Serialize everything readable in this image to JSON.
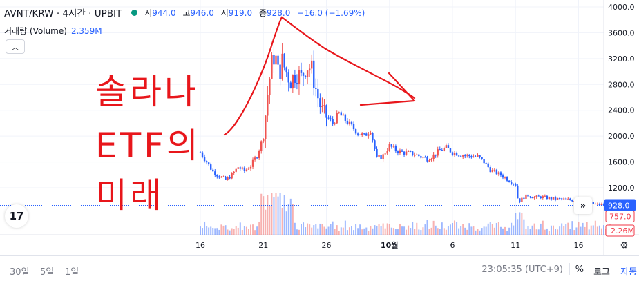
{
  "header": {
    "symbol": "AVNT/KRW · 4시간 · UPBIT",
    "open_label": "시",
    "open_value": "944.0",
    "high_label": "고",
    "high_value": "946.0",
    "low_label": "저",
    "low_value": "919.0",
    "close_label": "종",
    "close_value": "928.0",
    "change": "−16.0 (−1.69%)",
    "status_color": "#089981"
  },
  "volume_label": "거래량 (Volume)",
  "volume_value": "2.359M",
  "collapse_icon": "chevron-up-icon",
  "logo_text": "17",
  "price_scale_labels": {
    "current_price": "928.0",
    "current_color": "#2962ff",
    "marker_price": "757.0",
    "volume_tag": "2.26M",
    "marker_color": "#f23645"
  },
  "bottom_bar": {
    "ranges": [
      "30일",
      "5일",
      "1일"
    ],
    "clock": "23:05:35 (UTC+9)",
    "percent": "%",
    "log": "로그",
    "auto": "자동"
  },
  "annotation": {
    "line1": "솔라나",
    "line2": "ETF의",
    "line3": "미래",
    "ink_color": "#e8161b"
  },
  "colors": {
    "up": "#ef5350",
    "down": "#2962ff",
    "grid": "#f0f3fa",
    "text": "#131722"
  },
  "chart_data": {
    "type": "candlestick",
    "title": "AVNT/KRW · 4시간 · UPBIT",
    "y_ticks": [
      1200,
      1600,
      2000,
      2400,
      2800,
      3200,
      3600,
      4000
    ],
    "y_tick_labels": [
      "1200.0",
      "1600.0",
      "2000.0",
      "2400.0",
      "2800.0",
      "3200.0",
      "3600.0",
      "4000.0"
    ],
    "ylim": [
      716,
      4060
    ],
    "x_tick_labels": [
      "16",
      "21",
      "26",
      "10월",
      "6",
      "11",
      "16"
    ],
    "x_tick_days": [
      0,
      5,
      10,
      15,
      20,
      25,
      30
    ],
    "xlim_days": [
      -0.5,
      33.6
    ],
    "current_price": 928.0,
    "close_series": [
      [
        0,
        1750
      ],
      [
        0.5,
        1600
      ],
      [
        1,
        1450
      ],
      [
        1.5,
        1380
      ],
      [
        2,
        1320
      ],
      [
        2.5,
        1400
      ],
      [
        3,
        1520
      ],
      [
        3.5,
        1460
      ],
      [
        4,
        1540
      ],
      [
        4.5,
        1700
      ],
      [
        5,
        2000
      ],
      [
        5.3,
        2600
      ],
      [
        5.6,
        3050
      ],
      [
        5.9,
        3300
      ],
      [
        6.2,
        2950
      ],
      [
        6.5,
        3150
      ],
      [
        6.8,
        3000
      ],
      [
        7.2,
        2850
      ],
      [
        7.6,
        3000
      ],
      [
        8.0,
        2900
      ],
      [
        8.4,
        3100
      ],
      [
        8.8,
        3050
      ],
      [
        9.2,
        2700
      ],
      [
        9.6,
        2400
      ],
      [
        10.0,
        2300
      ],
      [
        10.5,
        2200
      ],
      [
        11.0,
        2350
      ],
      [
        11.5,
        2250
      ],
      [
        12.0,
        2150
      ],
      [
        12.5,
        2050
      ],
      [
        13.0,
        2000
      ],
      [
        13.5,
        2100
      ],
      [
        14.0,
        1650
      ],
      [
        14.5,
        1700
      ],
      [
        15.0,
        1850
      ],
      [
        15.5,
        1780
      ],
      [
        16.0,
        1750
      ],
      [
        17.0,
        1720
      ],
      [
        17.5,
        1680
      ],
      [
        18.0,
        1650
      ],
      [
        18.5,
        1700
      ],
      [
        19.0,
        1780
      ],
      [
        19.5,
        1820
      ],
      [
        20.0,
        1750
      ],
      [
        21.0,
        1700
      ],
      [
        22.0,
        1680
      ],
      [
        22.5,
        1600
      ],
      [
        23.0,
        1480
      ],
      [
        24.0,
        1380
      ],
      [
        25.0,
        1250
      ],
      [
        25.2,
        1000
      ],
      [
        25.4,
        1000
      ],
      [
        25.6,
        1050
      ],
      [
        26.0,
        1080
      ],
      [
        26.5,
        1050
      ],
      [
        27.0,
        1060
      ],
      [
        28.0,
        1030
      ],
      [
        29.0,
        1020
      ],
      [
        30.0,
        1000
      ],
      [
        30.5,
        990
      ],
      [
        31.0,
        960
      ],
      [
        31.5,
        940
      ],
      [
        32.0,
        935
      ],
      [
        33.0,
        928
      ]
    ],
    "volume_scale_max": 2.5,
    "volume_unit": "M"
  }
}
